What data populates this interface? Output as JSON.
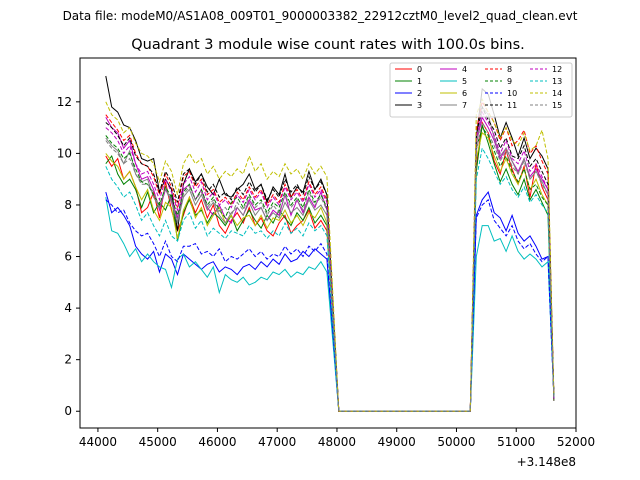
{
  "chart_data": {
    "type": "line",
    "suptitle": "Data file: modeM0/AS1A08_009T01_9000003382_22912cztM0_level2_quad_clean.evt",
    "title": "Quadrant 3 module wise count rates with 100.0s bins.",
    "xlabel": "",
    "ylabel": "",
    "x_offset_label": "+3.148e8",
    "xlim": [
      43700,
      52000
    ],
    "ylim": [
      -0.65,
      13.7
    ],
    "xticks": [
      44000,
      45000,
      46000,
      47000,
      48000,
      49000,
      50000,
      51000,
      52000
    ],
    "xtick_labels": [
      "44000",
      "45000",
      "46000",
      "47000",
      "48000",
      "49000",
      "50000",
      "51000",
      "52000"
    ],
    "yticks": [
      0,
      2,
      4,
      6,
      8,
      10,
      12
    ],
    "ytick_labels": [
      "0",
      "2",
      "4",
      "6",
      "8",
      "10",
      "12"
    ],
    "grid": false,
    "legend_position": "top-right",
    "x_segments": {
      "seg1": {
        "start": 44131,
        "step": 100,
        "count": 38
      },
      "gap": [
        48031,
        48131,
        50131,
        50231
      ],
      "seg2": {
        "start": 50331,
        "step": 100,
        "count": 13
      }
    },
    "series": [
      {
        "name": "0",
        "color": "#ff0000",
        "dash": "solid",
        "seg1": [
          9.9,
          9.5,
          9.8,
          9.0,
          9.3,
          8.7,
          7.7,
          7.9,
          8.5,
          7.5,
          8.9,
          7.8,
          7.0,
          7.6,
          8.3,
          7.7,
          8.2,
          7.5,
          8.0,
          7.2,
          6.9,
          7.4,
          7.7,
          7.3,
          7.9,
          7.2,
          7.5,
          7.0,
          6.8,
          7.3,
          7.6,
          6.9,
          7.2,
          7.4,
          7.8,
          7.1,
          7.4,
          7.0
        ],
        "seg2": [
          9.5,
          11.2,
          10.8,
          9.7,
          9.2,
          10.1,
          9.4,
          8.8,
          9.5,
          8.3,
          9.6,
          8.7,
          8.2
        ]
      },
      {
        "name": "1",
        "color": "#008000",
        "dash": "solid",
        "seg1": [
          9.6,
          9.9,
          9.2,
          8.8,
          9.0,
          8.6,
          7.9,
          8.5,
          7.7,
          8.1,
          7.8,
          8.4,
          6.6,
          7.7,
          8.2,
          7.6,
          7.8,
          7.3,
          7.7,
          7.5,
          7.2,
          7.6,
          7.0,
          7.4,
          7.8,
          7.4,
          7.1,
          7.6,
          7.3,
          7.8,
          7.5,
          7.2,
          7.7,
          7.4,
          7.9,
          7.3,
          7.6,
          7.2
        ],
        "seg2": [
          9.3,
          11.1,
          10.4,
          9.6,
          8.9,
          9.4,
          8.8,
          8.4,
          9.0,
          8.2,
          8.6,
          8.1,
          7.6
        ]
      },
      {
        "name": "2",
        "color": "#0000ff",
        "dash": "solid",
        "seg1": [
          8.5,
          7.7,
          7.9,
          7.6,
          7.2,
          6.4,
          6.1,
          5.9,
          6.2,
          5.4,
          6.1,
          5.9,
          5.3,
          6.1,
          5.9,
          5.7,
          5.5,
          5.7,
          5.8,
          5.4,
          5.6,
          5.5,
          5.3,
          5.6,
          5.7,
          5.5,
          5.8,
          5.6,
          5.9,
          5.7,
          6.1,
          5.8,
          5.9,
          6.2,
          6.0,
          6.3,
          6.1,
          5.9
        ],
        "seg2": [
          7.6,
          8.2,
          8.5,
          7.7,
          7.5,
          7.0,
          7.6,
          6.9,
          6.6,
          6.8,
          6.4,
          5.9,
          6.0
        ]
      },
      {
        "name": "3",
        "color": "#000000",
        "dash": "solid",
        "seg1": [
          13.0,
          11.8,
          11.6,
          11.1,
          11.0,
          10.5,
          9.8,
          9.7,
          9.8,
          8.5,
          9.0,
          8.6,
          7.0,
          8.8,
          9.4,
          8.9,
          9.2,
          8.7,
          8.4,
          9.0,
          8.4,
          8.3,
          8.6,
          8.8,
          9.2,
          8.6,
          8.8,
          8.1,
          8.7,
          8.4,
          9.2,
          8.3,
          8.7,
          8.5,
          9.3,
          8.6,
          9.0,
          8.4
        ],
        "seg2": [
          10.6,
          12.5,
          12.3,
          11.5,
          10.6,
          11.2,
          10.6,
          9.9,
          10.6,
          9.8,
          10.2,
          9.9,
          9.4
        ]
      },
      {
        "name": "4",
        "color": "#bf00bf",
        "dash": "solid",
        "seg1": [
          11.4,
          11.0,
          10.8,
          10.2,
          10.5,
          9.6,
          9.0,
          9.1,
          8.6,
          7.8,
          8.6,
          8.2,
          7.5,
          8.6,
          8.8,
          8.2,
          8.6,
          7.9,
          7.6,
          8.0,
          7.5,
          7.3,
          7.9,
          7.6,
          8.2,
          7.8,
          7.9,
          7.4,
          7.8,
          7.6,
          8.4,
          7.6,
          8.2,
          7.7,
          8.3,
          7.9,
          8.5,
          7.8
        ],
        "seg2": [
          10.4,
          11.4,
          11.0,
          10.5,
          9.8,
          10.2,
          9.7,
          9.3,
          9.8,
          9.1,
          9.4,
          9.0,
          8.6
        ]
      },
      {
        "name": "5",
        "color": "#00bfbf",
        "dash": "solid",
        "seg1": [
          8.3,
          7.0,
          6.9,
          6.5,
          6.0,
          6.3,
          5.8,
          6.1,
          5.8,
          5.6,
          5.5,
          4.8,
          5.9,
          6.1,
          5.6,
          5.8,
          5.5,
          5.2,
          5.6,
          4.6,
          5.3,
          5.1,
          5.0,
          5.2,
          4.9,
          5.0,
          5.2,
          5.1,
          5.4,
          5.3,
          5.5,
          5.2,
          5.4,
          5.3,
          5.6,
          5.5,
          5.8,
          5.4
        ],
        "seg2": [
          6.0,
          7.2,
          7.2,
          6.6,
          6.7,
          6.2,
          6.8,
          6.2,
          5.9,
          6.1,
          5.9,
          5.6,
          5.8
        ]
      },
      {
        "name": "6",
        "color": "#bfbf00",
        "dash": "solid",
        "seg1": [
          10.0,
          9.7,
          9.5,
          9.0,
          9.3,
          8.7,
          8.2,
          8.6,
          7.8,
          7.4,
          8.1,
          7.9,
          6.7,
          7.8,
          8.3,
          7.5,
          7.9,
          7.2,
          7.6,
          7.9,
          7.3,
          7.6,
          7.2,
          7.5,
          7.6,
          7.2,
          7.6,
          7.1,
          7.5,
          7.4,
          7.8,
          7.3,
          7.6,
          7.2,
          7.7,
          7.5,
          7.9,
          7.3
        ],
        "seg2": [
          9.8,
          10.8,
          10.6,
          9.9,
          9.3,
          9.8,
          9.2,
          8.8,
          9.4,
          8.6,
          9.0,
          8.4,
          8.0
        ]
      },
      {
        "name": "7",
        "color": "#808080",
        "dash": "solid",
        "seg1": [
          10.6,
          10.3,
          10.1,
          9.6,
          10.1,
          9.2,
          8.9,
          9.0,
          8.3,
          7.9,
          8.7,
          8.1,
          7.3,
          8.3,
          8.6,
          8.0,
          8.4,
          7.8,
          8.1,
          7.6,
          7.3,
          7.7,
          7.9,
          7.6,
          8.1,
          7.6,
          7.9,
          7.4,
          7.7,
          7.5,
          8.1,
          7.7,
          7.9,
          7.6,
          8.2,
          7.8,
          8.0,
          7.6
        ],
        "seg2": [
          10.3,
          11.8,
          11.5,
          10.6,
          9.9,
          10.2,
          9.7,
          9.2,
          9.8,
          9.0,
          9.3,
          8.9,
          8.4
        ]
      },
      {
        "name": "8",
        "color": "#ff0000",
        "dash": "dashed",
        "seg1": [
          11.5,
          11.2,
          10.9,
          10.5,
          10.7,
          10.0,
          9.6,
          9.5,
          9.1,
          8.4,
          9.2,
          8.7,
          7.9,
          9.1,
          9.3,
          8.7,
          9.0,
          8.4,
          8.6,
          8.1,
          8.3,
          8.0,
          8.5,
          8.2,
          8.7,
          8.3,
          8.6,
          8.0,
          8.4,
          8.1,
          8.8,
          8.3,
          8.6,
          8.2,
          8.9,
          8.4,
          8.7,
          8.2
        ],
        "seg2": [
          10.9,
          12.0,
          11.6,
          11.2,
          10.5,
          11.0,
          10.3,
          10.5,
          10.9,
          10.0,
          10.3,
          9.7,
          9.2
        ]
      },
      {
        "name": "9",
        "color": "#008000",
        "dash": "dashed",
        "seg1": [
          10.7,
          10.4,
          10.2,
          9.8,
          10.0,
          9.4,
          8.9,
          8.8,
          8.4,
          8.0,
          8.7,
          8.3,
          7.6,
          8.5,
          8.8,
          8.2,
          8.6,
          8.0,
          8.3,
          7.8,
          7.5,
          8.1,
          8.3,
          7.9,
          8.4,
          8.0,
          8.2,
          7.7,
          8.1,
          7.9,
          8.5,
          8.0,
          8.3,
          7.9,
          8.6,
          8.1,
          8.4,
          7.9
        ],
        "seg2": [
          10.2,
          11.0,
          10.7,
          10.1,
          9.5,
          9.9,
          9.3,
          8.9,
          9.4,
          8.6,
          8.8,
          8.3,
          8.0
        ]
      },
      {
        "name": "10",
        "color": "#0000ff",
        "dash": "dashed",
        "seg1": [
          8.2,
          8.0,
          7.7,
          7.8,
          7.3,
          7.0,
          6.8,
          6.9,
          6.5,
          6.0,
          6.6,
          6.0,
          5.8,
          6.4,
          6.4,
          6.5,
          6.1,
          6.2,
          6.0,
          6.3,
          5.8,
          6.0,
          5.9,
          6.1,
          6.3,
          6.0,
          6.2,
          5.9,
          6.1,
          6.0,
          6.4,
          6.1,
          6.3,
          6.0,
          6.4,
          6.2,
          6.5,
          6.1
        ],
        "seg2": [
          7.5,
          8.0,
          8.2,
          7.4,
          7.1,
          6.8,
          7.2,
          6.6,
          6.3,
          6.5,
          6.1,
          5.8,
          6.0
        ]
      },
      {
        "name": "11",
        "color": "#000000",
        "dash": "dashed",
        "seg1": [
          11.2,
          11.0,
          10.7,
          10.3,
          10.6,
          9.9,
          9.6,
          9.5,
          9.2,
          8.5,
          9.3,
          8.9,
          8.1,
          9.2,
          9.4,
          8.8,
          9.2,
          8.5,
          8.8,
          8.3,
          8.5,
          8.2,
          8.7,
          8.4,
          8.9,
          8.5,
          8.8,
          8.2,
          8.6,
          8.3,
          9.0,
          8.5,
          8.8,
          8.4,
          9.1,
          8.6,
          8.9,
          8.4
        ],
        "seg2": [
          10.7,
          11.8,
          11.3,
          10.9,
          10.2,
          10.6,
          9.9,
          9.8,
          10.3,
          9.5,
          9.8,
          9.3,
          8.8
        ]
      },
      {
        "name": "12",
        "color": "#bf00bf",
        "dash": "dashed",
        "seg1": [
          11.0,
          10.8,
          10.5,
          10.0,
          10.3,
          9.6,
          9.2,
          9.3,
          8.8,
          8.2,
          9.0,
          8.5,
          7.8,
          8.8,
          9.1,
          8.5,
          8.9,
          8.2,
          8.5,
          8.0,
          8.2,
          7.9,
          8.4,
          8.1,
          8.6,
          8.2,
          8.5,
          7.9,
          8.3,
          8.0,
          8.7,
          8.2,
          8.5,
          8.1,
          8.8,
          8.3,
          8.6,
          8.1
        ],
        "seg2": [
          10.6,
          11.6,
          11.2,
          10.7,
          10.0,
          10.5,
          9.8,
          9.6,
          10.1,
          9.3,
          9.6,
          9.1,
          8.6
        ]
      },
      {
        "name": "13",
        "color": "#00bfbf",
        "dash": "dashed",
        "seg1": [
          9.5,
          9.0,
          8.7,
          8.3,
          8.5,
          8.0,
          7.4,
          7.7,
          7.2,
          6.8,
          7.4,
          6.8,
          6.6,
          7.4,
          7.7,
          7.1,
          7.4,
          6.8,
          7.1,
          6.9,
          6.7,
          7.0,
          6.9,
          6.8,
          7.2,
          6.9,
          7.0,
          6.7,
          7.0,
          6.8,
          7.3,
          6.9,
          7.1,
          6.8,
          7.3,
          7.0,
          7.2,
          6.8
        ],
        "seg2": [
          9.0,
          10.2,
          9.8,
          9.3,
          8.8,
          9.1,
          8.6,
          8.3,
          8.7,
          8.1,
          8.4,
          8.0,
          7.7
        ]
      },
      {
        "name": "14",
        "color": "#bfbf00",
        "dash": "dashed",
        "seg1": [
          12.0,
          11.5,
          11.3,
          10.8,
          11.0,
          10.4,
          10.0,
          9.9,
          9.6,
          8.9,
          9.7,
          9.3,
          8.4,
          9.6,
          10.0,
          9.6,
          9.8,
          9.2,
          9.5,
          9.0,
          9.3,
          9.1,
          9.4,
          9.2,
          9.9,
          9.3,
          9.6,
          9.0,
          9.3,
          9.1,
          9.6,
          9.2,
          9.4,
          9.0,
          9.6,
          9.2,
          9.5,
          9.1
        ],
        "seg2": [
          11.5,
          12.1,
          11.6,
          11.2,
          10.6,
          11.0,
          10.5,
          10.3,
          10.8,
          10.1,
          10.3,
          10.9,
          9.8
        ]
      },
      {
        "name": "15",
        "color": "#808080",
        "dash": "dashed",
        "seg1": [
          10.5,
          10.2,
          10.0,
          9.6,
          9.8,
          9.2,
          8.8,
          8.8,
          8.5,
          7.9,
          8.6,
          8.1,
          7.4,
          8.4,
          8.7,
          8.2,
          8.5,
          7.9,
          8.2,
          7.7,
          7.9,
          7.6,
          8.1,
          7.8,
          8.3,
          7.9,
          8.1,
          7.6,
          8.0,
          7.7,
          8.4,
          7.9,
          8.2,
          7.8,
          8.5,
          8.0,
          8.3,
          7.8
        ],
        "seg2": [
          10.1,
          11.2,
          10.8,
          10.3,
          9.7,
          10.1,
          9.5,
          9.2,
          9.7,
          9.0,
          9.3,
          8.8,
          8.4
        ]
      }
    ]
  }
}
